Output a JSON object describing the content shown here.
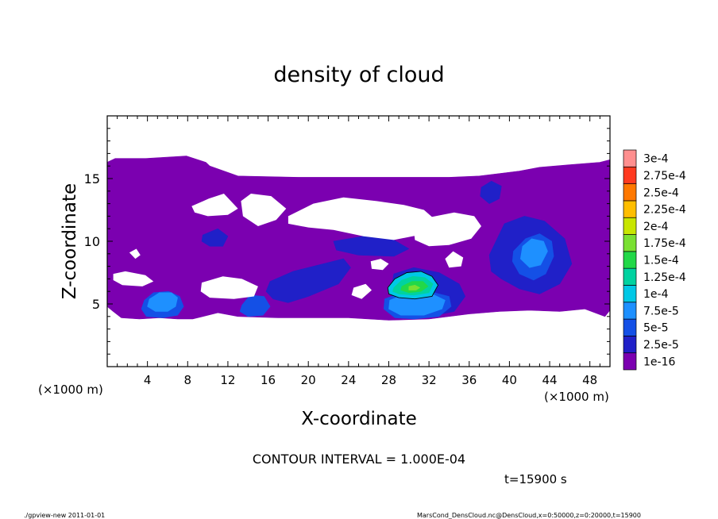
{
  "chart_data": {
    "type": "heatmap",
    "title": "density of cloud",
    "xlabel": "X-coordinate",
    "ylabel": "Z-coordinate",
    "x_unit": "(×1000 m)",
    "z_unit": "(×1000 m)",
    "xlim": [
      0,
      50
    ],
    "ylim": [
      0,
      20
    ],
    "x_ticks": [
      4,
      8,
      12,
      16,
      20,
      24,
      28,
      32,
      36,
      40,
      44,
      48
    ],
    "y_ticks": [
      5,
      10,
      15
    ],
    "contour_interval_text": "CONTOUR INTERVAL = 1.000E-04",
    "time_text": "t=15900 s",
    "footer_left": "./gpview-new  2011-01-01",
    "footer_right": "MarsCond_DensCloud.nc@DensCloud,x=0:50000,z=0:20000,t=15900",
    "colorbar": {
      "labels": [
        "1e-16",
        "2.5e-5",
        "5e-5",
        "7.5e-5",
        "1e-4",
        "1.25e-4",
        "1.5e-4",
        "1.75e-4",
        "2e-4",
        "2.25e-4",
        "2.5e-4",
        "2.75e-4",
        "3e-4"
      ],
      "colors": [
        "#7b00b0",
        "#2020c8",
        "#1450e6",
        "#1e90ff",
        "#00c8e6",
        "#00d2a0",
        "#22d848",
        "#7ae032",
        "#c8e600",
        "#ffbe00",
        "#ff7800",
        "#ff3a20",
        "#ff8f8f"
      ]
    },
    "regions": [
      {
        "level": 0,
        "x": [
          0,
          0.8,
          3.8,
          7.9,
          9.8,
          10.2,
          13,
          19,
          28,
          34,
          37,
          41,
          43,
          46,
          49,
          50,
          50,
          49.5,
          47.5,
          45,
          42,
          39,
          36,
          32,
          28,
          24,
          20,
          17,
          13,
          11,
          8.5,
          7,
          5.2,
          3.2,
          1.4,
          0.6,
          0
        ],
        "y": [
          16.3,
          16.6,
          16.6,
          16.8,
          16.3,
          16.0,
          15.2,
          15.1,
          15.1,
          15.1,
          15.2,
          15.6,
          15.9,
          16.1,
          16.3,
          16.5,
          4.5,
          4.0,
          4.6,
          4.4,
          4.5,
          4.4,
          4.2,
          3.8,
          3.7,
          3.9,
          3.9,
          3.9,
          4.0,
          4.3,
          3.8,
          3.8,
          3.9,
          3.8,
          3.9,
          4.4,
          4.8
        ]
      },
      {
        "level": 1,
        "x": [
          16.2,
          18.5,
          21.5,
          23.5,
          24.2,
          23,
          20,
          18,
          16.5,
          15.8
        ],
        "y": [
          6.8,
          7.6,
          8.2,
          8.6,
          7.9,
          6.6,
          5.6,
          5.1,
          5.4,
          6.0
        ]
      },
      {
        "level": 1,
        "x": [
          38,
          39.5,
          41.5,
          43.5,
          45.5,
          46.2,
          45,
          43,
          41,
          39.2,
          38.2
        ],
        "y": [
          8.9,
          11.4,
          12.0,
          11.6,
          10.2,
          8.2,
          6.6,
          5.8,
          6.2,
          7.0,
          7.6
        ]
      },
      {
        "level": 1,
        "x": [
          28.5,
          30.5,
          33,
          35,
          35.6,
          34.5,
          32,
          29.5,
          28.2
        ],
        "y": [
          7.4,
          7.9,
          7.5,
          6.6,
          5.6,
          4.4,
          4.0,
          4.4,
          5.8
        ]
      },
      {
        "level": 1,
        "x": [
          9.5,
          11,
          12,
          11.5,
          10.2,
          9.4
        ],
        "y": [
          10.5,
          11.0,
          10.4,
          9.6,
          9.6,
          10.0
        ]
      },
      {
        "level": 1,
        "x": [
          37.2,
          38.2,
          39.2,
          39,
          38,
          37.1
        ],
        "y": [
          14.3,
          14.8,
          14.4,
          13.4,
          13.0,
          13.6
        ]
      },
      {
        "level": 1,
        "x": [
          22.5,
          25.5,
          28.5,
          30,
          28.5,
          25,
          22.8
        ],
        "y": [
          10.0,
          10.4,
          10.1,
          9.4,
          8.8,
          8.9,
          9.3
        ]
      },
      {
        "level": 2,
        "x": [
          3.7,
          4.6,
          6.1,
          7.2,
          7.6,
          7.0,
          5.5,
          3.9,
          3.4
        ],
        "y": [
          5.3,
          5.9,
          6.0,
          5.6,
          4.8,
          4.1,
          3.9,
          4.0,
          4.6
        ]
      },
      {
        "level": 2,
        "x": [
          13.4,
          14.2,
          15.6,
          16.2,
          15.5,
          14,
          13.2
        ],
        "y": [
          4.9,
          5.7,
          5.6,
          4.8,
          4.1,
          4.0,
          4.4
        ]
      },
      {
        "level": 2,
        "x": [
          40.4,
          41.6,
          43,
          44.2,
          44.4,
          43.6,
          42.4,
          41,
          40.3
        ],
        "y": [
          9.2,
          10.2,
          10.6,
          10.0,
          8.8,
          7.4,
          6.9,
          7.4,
          8.4
        ]
      },
      {
        "level": 2,
        "x": [
          27.6,
          30,
          32.5,
          34,
          34.2,
          33,
          30.5,
          28.6,
          27.5
        ],
        "y": [
          5.4,
          6.1,
          5.9,
          5.6,
          4.8,
          4.0,
          3.8,
          3.9,
          4.6
        ]
      },
      {
        "level": 3,
        "x": [
          4.2,
          5.2,
          6.4,
          7.0,
          6.8,
          6.0,
          4.8,
          4.0
        ],
        "y": [
          5.4,
          5.9,
          5.9,
          5.5,
          4.8,
          4.4,
          4.4,
          4.8
        ]
      },
      {
        "level": 3,
        "x": [
          41.3,
          42.2,
          43.4,
          43.8,
          43.1,
          42,
          41.1
        ],
        "y": [
          9.6,
          10.2,
          10.0,
          9.2,
          8.1,
          7.9,
          8.6
        ]
      },
      {
        "level": 3,
        "x": [
          28.1,
          30,
          32.3,
          33.6,
          33.3,
          31.5,
          29.2,
          28.0
        ],
        "y": [
          5.3,
          5.9,
          5.8,
          5.3,
          4.6,
          4.1,
          4.1,
          4.6
        ]
      },
      {
        "level": 4,
        "x": [
          27.9,
          28.6,
          29.8,
          31.2,
          32.3,
          32.9,
          32.3,
          30.6,
          29,
          28.0
        ],
        "y": [
          6.3,
          7.0,
          7.5,
          7.6,
          7.2,
          6.5,
          5.6,
          5.4,
          5.5,
          5.8
        ]
      },
      {
        "level": 5,
        "x": [
          28.5,
          29.3,
          30.4,
          31.6,
          32.4,
          32.0,
          30.5,
          29.0,
          28.4
        ],
        "y": [
          6.3,
          6.9,
          7.2,
          7.1,
          6.6,
          5.9,
          5.7,
          5.8,
          6.0
        ]
      },
      {
        "level": 6,
        "x": [
          29.3,
          30.3,
          31.4,
          31.9,
          31.2,
          30.0,
          29.2
        ],
        "y": [
          6.4,
          6.8,
          6.8,
          6.4,
          6.0,
          5.9,
          6.1
        ]
      },
      {
        "level": 7,
        "x": [
          30.0,
          30.6,
          31.1,
          30.7,
          30.0
        ],
        "y": [
          6.4,
          6.5,
          6.3,
          6.1,
          6.1
        ]
      }
    ],
    "holes": [
      {
        "x": [
          8.4,
          10.1,
          11.6,
          12.3,
          13,
          12,
          10,
          8.7
        ],
        "y": [
          12.8,
          13.4,
          13.8,
          13.2,
          12.6,
          12.1,
          12.0,
          12.3
        ]
      },
      {
        "x": [
          13.3,
          14.3,
          16.3,
          17.8,
          16.8,
          15,
          13.5
        ],
        "y": [
          13.2,
          13.8,
          13.6,
          12.6,
          11.7,
          11.2,
          12.0
        ]
      },
      {
        "x": [
          18.0,
          20.5,
          23.5,
          26.8,
          29.5,
          31.5,
          32.5,
          31.0,
          28.5,
          25.5,
          22.5,
          20.0,
          18.0
        ],
        "y": [
          12.0,
          13.0,
          13.5,
          13.2,
          12.9,
          12.5,
          11.8,
          10.5,
          10.1,
          10.4,
          10.9,
          11.1,
          11.4
        ]
      },
      {
        "x": [
          30.5,
          32,
          34.5,
          36.5,
          37.2,
          36.2,
          34,
          32,
          30.6
        ],
        "y": [
          10.8,
          11.9,
          12.3,
          12.0,
          11.2,
          10.2,
          9.7,
          9.6,
          10.1
        ]
      },
      {
        "x": [
          33.6,
          34.4,
          35.4,
          35.2,
          34.0
        ],
        "y": [
          8.6,
          9.2,
          8.7,
          8.0,
          7.9
        ]
      },
      {
        "x": [
          26.2,
          27.2,
          28.0,
          27.4,
          26.3
        ],
        "y": [
          8.4,
          8.6,
          8.2,
          7.7,
          7.8
        ]
      },
      {
        "x": [
          0.6,
          1.8,
          3.8,
          4.6,
          3.5,
          1.5,
          0.6
        ],
        "y": [
          7.4,
          7.6,
          7.3,
          6.8,
          6.4,
          6.5,
          6.9
        ]
      },
      {
        "x": [
          9.4,
          11.5,
          13.4,
          15.0,
          14.6,
          12.6,
          10.2,
          9.3
        ],
        "y": [
          6.7,
          7.2,
          7.0,
          6.4,
          5.6,
          5.4,
          5.5,
          6.0
        ]
      },
      {
        "x": [
          2.2,
          2.9,
          3.3,
          2.8
        ],
        "y": [
          9.1,
          9.4,
          8.9,
          8.6
        ]
      },
      {
        "x": [
          24.5,
          25.7,
          26.3,
          25.3,
          24.3
        ],
        "y": [
          6.3,
          6.6,
          6.1,
          5.4,
          5.7
        ]
      }
    ]
  }
}
